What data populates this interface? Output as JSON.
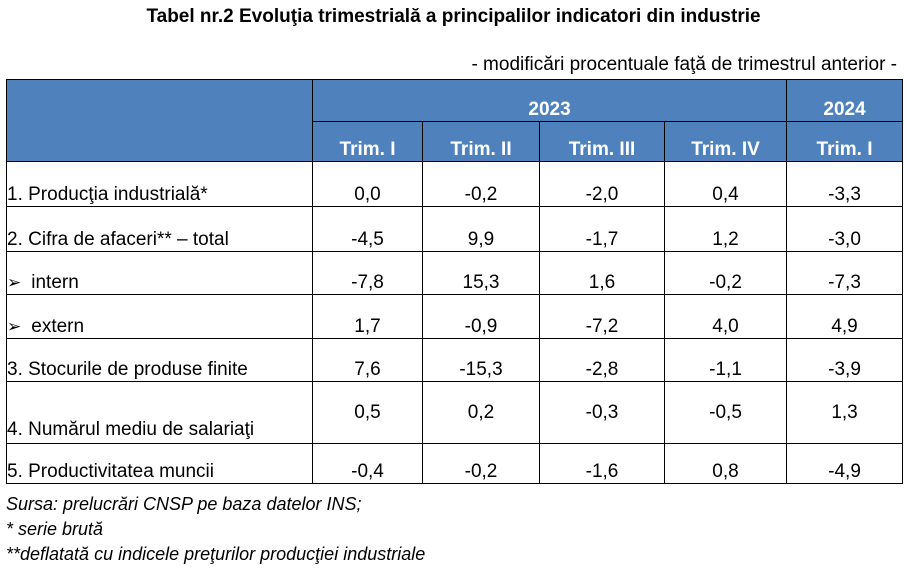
{
  "title": "Tabel nr.2  Evoluţia trimestrială a principalilor indicatori din industrie",
  "subtitle": "- modificări procentuale faţă de trimestrul anterior -",
  "header": {
    "year_2023": "2023",
    "year_2024": "2024",
    "quarters": [
      "Trim. I",
      "Trim. II",
      "Trim. III",
      "Trim. IV",
      "Trim. I"
    ]
  },
  "rows": [
    {
      "label": "1. Producţia industrială*",
      "values": [
        "0,0",
        "-0,2",
        "-2,0",
        "0,4",
        "-3,3"
      ]
    },
    {
      "label": "2. Cifra de afaceri**  – total",
      "values": [
        "-4,5",
        "9,9",
        "-1,7",
        "1,2",
        "-3,0"
      ]
    },
    {
      "label": "intern",
      "values": [
        "-7,8",
        "15,3",
        "1,6",
        "-0,2",
        "-7,3"
      ]
    },
    {
      "label": "extern",
      "values": [
        "1,7",
        "-0,9",
        "-7,2",
        "4,0",
        "4,9"
      ]
    },
    {
      "label": "3. Stocurile de produse finite",
      "values": [
        "7,6",
        "-15,3",
        "-2,8",
        "-1,1",
        "-3,9"
      ]
    },
    {
      "label": "4. Numărul mediu de salariaţi",
      "values": [
        "0,5",
        "0,2",
        "-0,3",
        "-0,5",
        "1,3"
      ]
    },
    {
      "label": "5. Productivitatea muncii",
      "values": [
        "-0,4",
        "-0,2",
        "-1,6",
        "0,8",
        "-4,9"
      ]
    }
  ],
  "footnotes": [
    "Sursa: prelucrări CNSP pe baza datelor INS;",
    "* serie brută",
    "**deflatată cu indicele preţurilor producţiei industriale"
  ],
  "colors": {
    "header_bg": "#4f81bd",
    "header_text": "#ffffff"
  },
  "icons": {
    "bullet": "arrow-bullet-icon"
  }
}
